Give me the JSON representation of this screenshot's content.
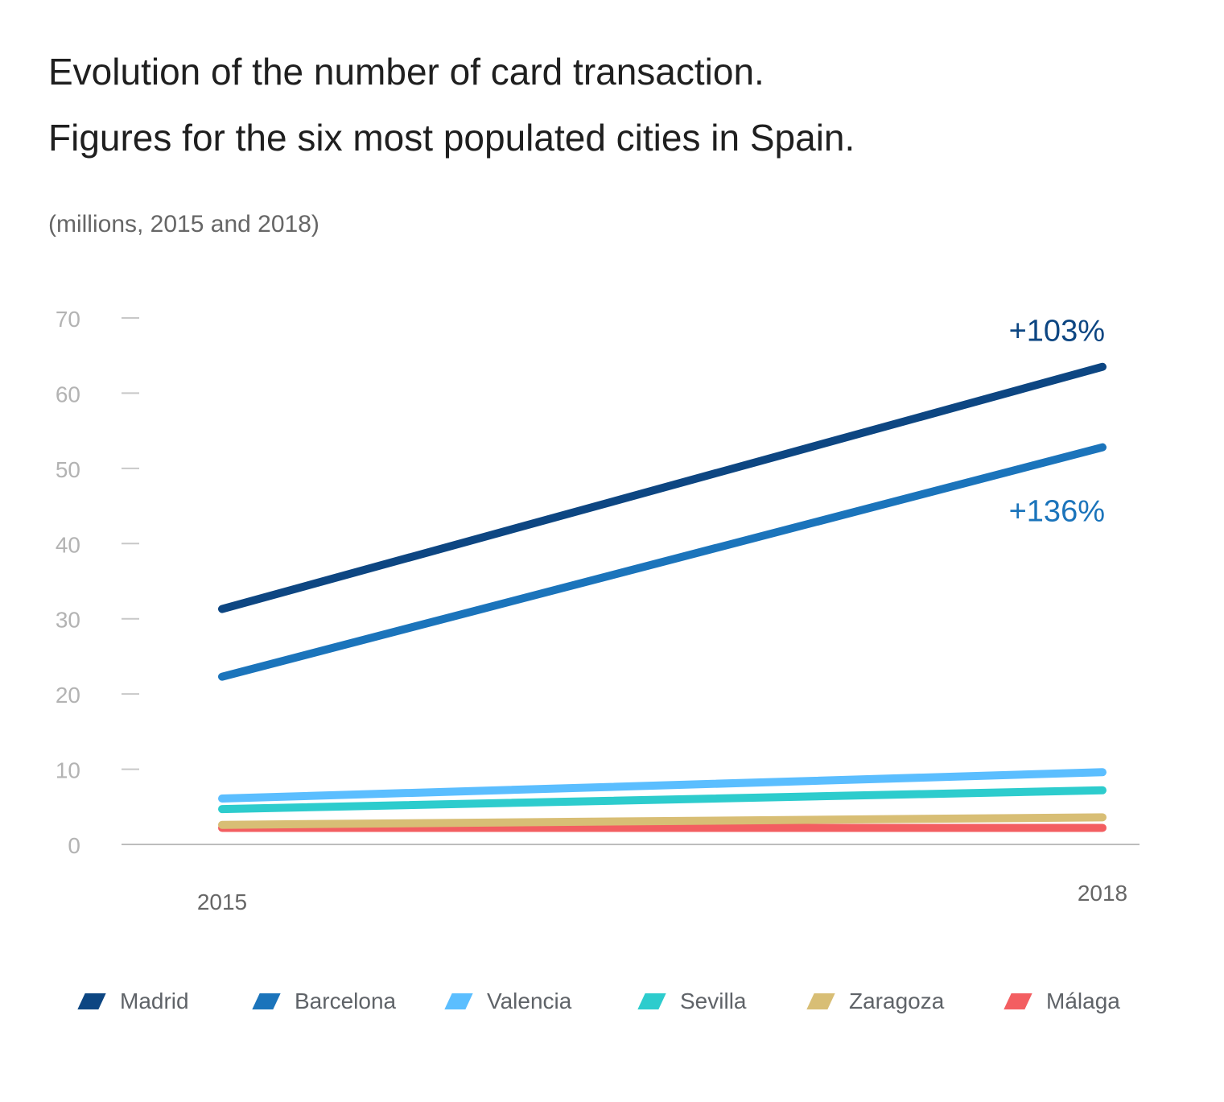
{
  "title_line1": "Evolution of the number of card transaction.",
  "title_line2": "Figures for the six most populated cities in Spain.",
  "subtitle": "(millions, 2015 and 2018)",
  "chart_data": {
    "type": "line",
    "x": [
      "2015",
      "2018"
    ],
    "y_ticks": [
      "0",
      "10",
      "20",
      "30",
      "40",
      "50",
      "60",
      "70"
    ],
    "ylim": [
      0,
      70
    ],
    "grid": false,
    "legend_position": "bottom",
    "series": [
      {
        "name": "Madrid",
        "color": "#0d4682",
        "values": [
          31.3,
          63.5
        ]
      },
      {
        "name": "Barcelona",
        "color": "#1b74bb",
        "values": [
          22.3,
          52.8
        ]
      },
      {
        "name": "Valencia",
        "color": "#5bbeff",
        "values": [
          6.1,
          9.6
        ]
      },
      {
        "name": "Sevilla",
        "color": "#2dcccd",
        "values": [
          4.7,
          7.2
        ]
      },
      {
        "name": "Zaragoza",
        "color": "#d8be75",
        "values": [
          2.6,
          3.6
        ]
      },
      {
        "name": "Málaga",
        "color": "#f35e61",
        "values": [
          2.2,
          2.2
        ]
      }
    ],
    "annotations": [
      {
        "text": "+103%",
        "series": "Madrid",
        "color": "#0d4682"
      },
      {
        "text": "+136%",
        "series": "Barcelona",
        "color": "#1b74bb"
      }
    ]
  }
}
